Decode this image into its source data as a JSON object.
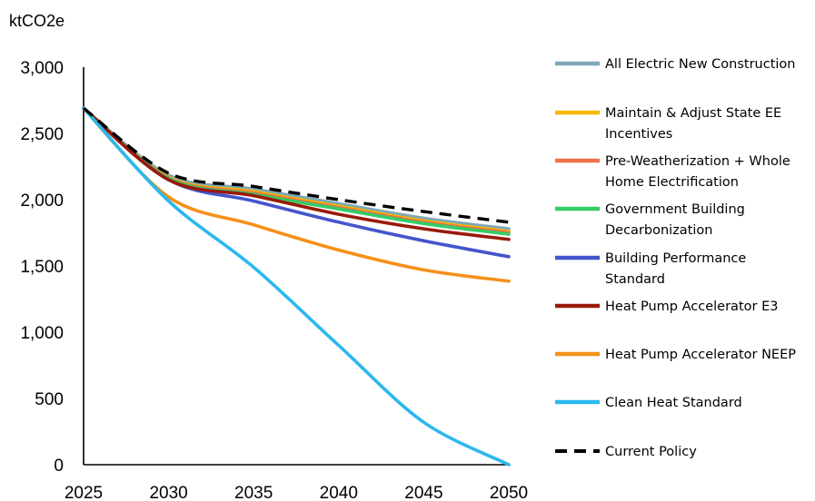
{
  "chart_data": {
    "type": "line",
    "title": "",
    "xlabel": "",
    "ylabel": "ktCO2e",
    "x": [
      2025,
      2030,
      2035,
      2040,
      2045,
      2050
    ],
    "xlim": [
      2025,
      2050
    ],
    "ylim": [
      0,
      3000
    ],
    "xticks": [
      "2025",
      "2030",
      "2035",
      "2040",
      "2045",
      "2050"
    ],
    "yticks": [
      "0",
      "500",
      "1,000",
      "1,500",
      "2,000",
      "2,500",
      "3,000"
    ],
    "grid": false,
    "legend_position": "right",
    "series": [
      {
        "name": "All Electric New Construction",
        "color": "#7fa8b8",
        "dash": false,
        "values": [
          2690,
          2185,
          2080,
          1970,
          1860,
          1780
        ]
      },
      {
        "name": "Maintain & Adjust State EE Incentives",
        "color": "#f5b800",
        "dash": false,
        "values": [
          2690,
          2170,
          2060,
          1950,
          1840,
          1760
        ]
      },
      {
        "name": "Pre-Weatherization + Whole Home Electrification",
        "color": "#f07048",
        "dash": false,
        "values": [
          2690,
          2165,
          2050,
          1940,
          1830,
          1750
        ]
      },
      {
        "name": "Government Building Decarbonization",
        "color": "#33cc66",
        "dash": false,
        "values": [
          2690,
          2160,
          2040,
          1930,
          1820,
          1740
        ]
      },
      {
        "name": "Building Performance Standard",
        "color": "#4455cc",
        "dash": false,
        "values": [
          2690,
          2150,
          1990,
          1830,
          1690,
          1570
        ]
      },
      {
        "name": "Heat Pump Accelerator E3",
        "color": "#9a1a0a",
        "dash": false,
        "values": [
          2690,
          2150,
          2030,
          1890,
          1780,
          1700
        ]
      },
      {
        "name": "Heat Pump Accelerator NEEP",
        "color": "#f5901a",
        "dash": false,
        "values": [
          2690,
          2020,
          1810,
          1620,
          1470,
          1385
        ]
      },
      {
        "name": "Clean Heat Standard",
        "color": "#2cb8ee",
        "dash": false,
        "values": [
          2690,
          1990,
          1490,
          900,
          320,
          0
        ]
      },
      {
        "name": "Current Policy",
        "color": "#000000",
        "dash": true,
        "values": [
          2690,
          2200,
          2100,
          2000,
          1910,
          1830
        ]
      }
    ]
  },
  "legend": {
    "items": [
      {
        "lines": [
          "All Electric New Construction"
        ]
      },
      {
        "lines": [
          "Maintain & Adjust State EE",
          "Incentives"
        ]
      },
      {
        "lines": [
          "Pre-Weatherization + Whole",
          "Home Electrification"
        ]
      },
      {
        "lines": [
          "Government Building",
          "Decarbonization"
        ]
      },
      {
        "lines": [
          "Building Performance",
          "Standard"
        ]
      },
      {
        "lines": [
          "Heat Pump Accelerator E3"
        ]
      },
      {
        "lines": [
          "Heat Pump Accelerator NEEP"
        ]
      },
      {
        "lines": [
          "Clean Heat Standard"
        ]
      },
      {
        "lines": [
          "Current Policy"
        ]
      }
    ]
  }
}
